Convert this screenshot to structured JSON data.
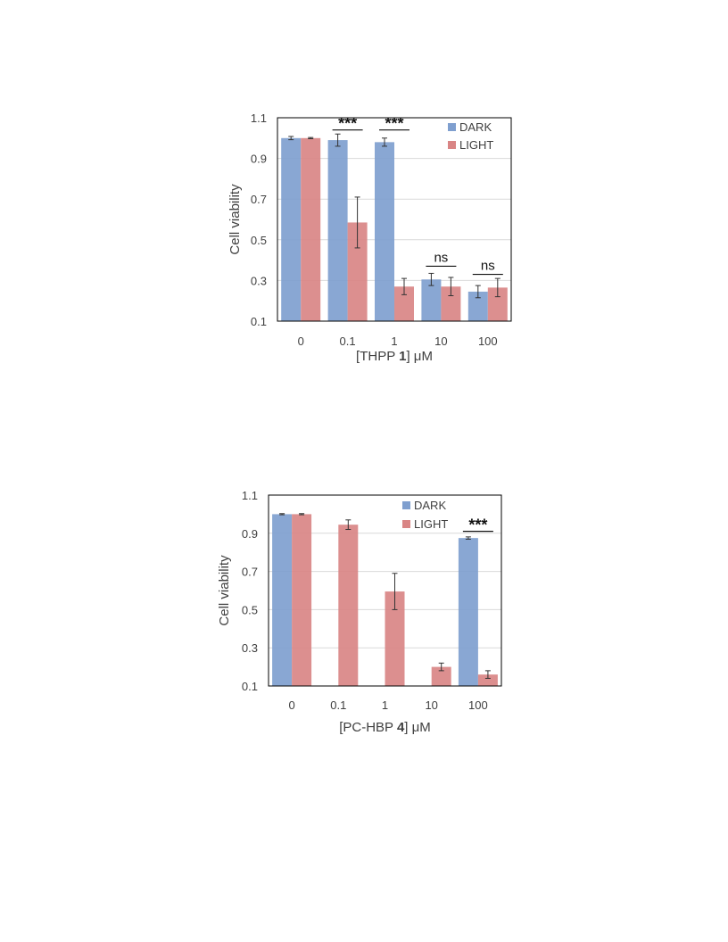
{
  "chart_data": [
    {
      "type": "bar",
      "title": "",
      "xlabel_parts": {
        "prefix": "[THPP ",
        "bold": "1",
        "suffix": "] μM"
      },
      "ylabel": "Cell viability",
      "categories": [
        "0",
        "0.1",
        "1",
        "10",
        "100"
      ],
      "ylim": [
        0.1,
        1.1
      ],
      "yticks": [
        "0.1",
        "0.3",
        "0.5",
        "0.7",
        "0.9",
        "1.1"
      ],
      "grid": true,
      "legend_position": "top-right",
      "series": [
        {
          "name": "DARK",
          "color": "#7f9fcf",
          "values": [
            1.0,
            0.99,
            0.98,
            0.305,
            0.245
          ],
          "errors": [
            0.008,
            0.03,
            0.02,
            0.03,
            0.03
          ]
        },
        {
          "name": "LIGHT",
          "color": "#d98585",
          "values": [
            1.0,
            0.585,
            0.27,
            0.27,
            0.265
          ],
          "errors": [
            0.003,
            0.125,
            0.04,
            0.045,
            0.045
          ]
        }
      ],
      "annotations": [
        {
          "text": "***",
          "category_index": 1,
          "level": 1.04
        },
        {
          "text": "***",
          "category_index": 2,
          "level": 1.04
        },
        {
          "text": "ns",
          "category_index": 3,
          "level": 0.37
        },
        {
          "text": "ns",
          "category_index": 4,
          "level": 0.33
        }
      ]
    },
    {
      "type": "bar",
      "title": "",
      "xlabel_parts": {
        "prefix": "[PC-HBP ",
        "bold": "4",
        "suffix": "] μM"
      },
      "ylabel": "Cell viability",
      "categories": [
        "0",
        "0.1",
        "1",
        "10",
        "100"
      ],
      "ylim": [
        0.1,
        1.1
      ],
      "yticks": [
        "0.1",
        "0.3",
        "0.5",
        "0.7",
        "0.9",
        "1.1"
      ],
      "grid": true,
      "legend_position": "top-right",
      "series": [
        {
          "name": "DARK",
          "color": "#7f9fcf",
          "values": [
            1.0,
            null,
            null,
            null,
            0.875
          ],
          "errors": [
            0.003,
            null,
            null,
            null,
            0.006
          ]
        },
        {
          "name": "LIGHT",
          "color": "#d98585",
          "values": [
            1.0,
            0.945,
            0.595,
            0.2,
            0.16
          ],
          "errors": [
            0.003,
            0.025,
            0.095,
            0.02,
            0.02
          ]
        }
      ],
      "annotations": [
        {
          "text": "***",
          "category_index": 4,
          "level": 0.91
        }
      ]
    }
  ]
}
